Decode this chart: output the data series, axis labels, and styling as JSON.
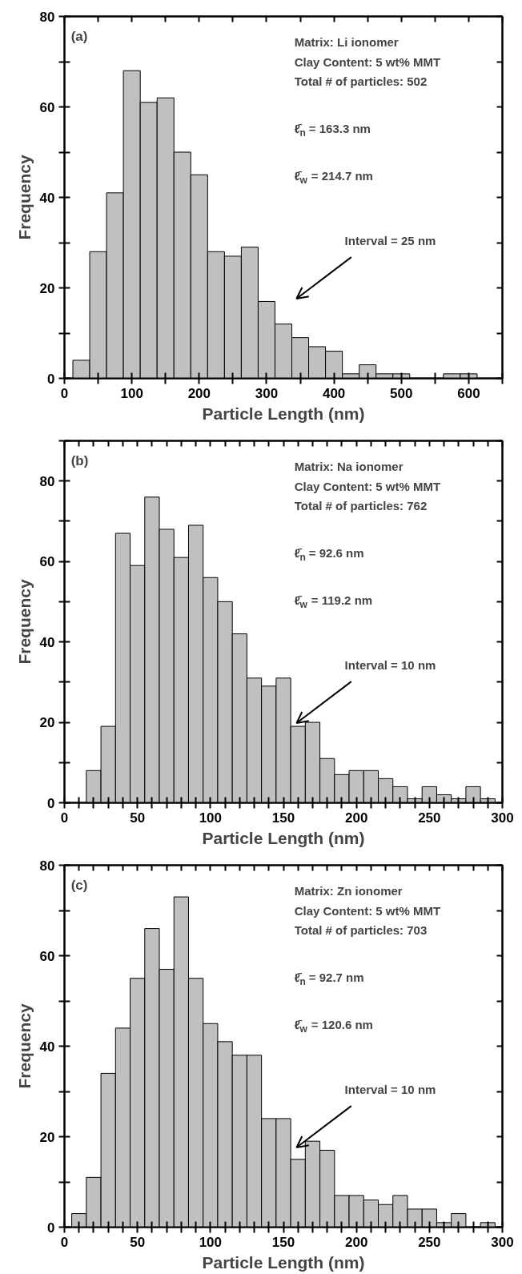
{
  "chart_data": [
    {
      "type": "histogram",
      "xlabel": "Particle Length (nm)",
      "ylabel": "Frequency",
      "color": "#c0c0c0",
      "grid": false,
      "bins": [
        12.5,
        37.5,
        62.5,
        87.5,
        112.5,
        137.5,
        162.5,
        187.5,
        212.5,
        237.5,
        262.5,
        287.5,
        312.5,
        337.5,
        362.5,
        387.5,
        412.5,
        437.5,
        462.5,
        487.5,
        512.5,
        537.5,
        562.5,
        587.5,
        612.5
      ],
      "values": [
        4,
        28,
        41,
        68,
        61,
        62,
        50,
        45,
        28,
        27,
        29,
        17,
        12,
        9,
        7,
        6,
        1,
        3,
        1,
        1,
        0,
        0,
        1,
        1
      ],
      "xlim": [
        0,
        650
      ],
      "ylim": [
        0,
        80
      ],
      "xticks": [
        0,
        {
          "value": 50,
          "label": null
        },
        100,
        {
          "value": 150,
          "label": null
        },
        200,
        {
          "value": 250,
          "label": null
        },
        300,
        {
          "value": 350,
          "label": null
        },
        400,
        {
          "value": 450,
          "label": null
        },
        500,
        {
          "value": 550,
          "label": null
        },
        600,
        {
          "value": 650,
          "label": null
        }
      ],
      "yticks": [
        0,
        {
          "value": 10,
          "label": null
        },
        20,
        {
          "value": 30,
          "label": null
        },
        40,
        {
          "value": 50,
          "label": null
        },
        60,
        {
          "value": 70,
          "label": null
        },
        80
      ],
      "annotations": [
        "(a)",
        "Matrix: Li ionomer",
        "Clay Content: 5 wt% MMT",
        "Total # of particles: 502",
        "ℓ̄$_{n}$ = 163.3 nm",
        "ℓ̄$_{w}$ = 214.7 nm",
        "Interval = 25 nm"
      ]
    },
    {
      "type": "histogram",
      "xlabel": "Particle Length (nm)",
      "ylabel": "Frequency",
      "color": "#c0c0c0",
      "grid": false,
      "bins": [
        15,
        25,
        35,
        45,
        55,
        65,
        75,
        85,
        95,
        105,
        115,
        125,
        135,
        145,
        155,
        165,
        175,
        185,
        195,
        205,
        215,
        225,
        235,
        245,
        255,
        265,
        275,
        285,
        295
      ],
      "values": [
        8,
        19,
        67,
        59,
        76,
        68,
        61,
        69,
        56,
        50,
        42,
        31,
        29,
        31,
        19,
        20,
        11,
        7,
        8,
        8,
        6,
        4,
        1,
        4,
        2,
        1,
        4,
        1
      ],
      "xlim": [
        0,
        300
      ],
      "ylim": [
        0,
        90
      ],
      "xticks": [
        0,
        {
          "value": 10,
          "label": null
        },
        {
          "value": 20,
          "label": null
        },
        {
          "value": 30,
          "label": null
        },
        {
          "value": 40,
          "label": null
        },
        50,
        {
          "value": 60,
          "label": null
        },
        {
          "value": 70,
          "label": null
        },
        {
          "value": 80,
          "label": null
        },
        {
          "value": 90,
          "label": null
        },
        100,
        {
          "value": 110,
          "label": null
        },
        {
          "value": 120,
          "label": null
        },
        {
          "value": 130,
          "label": null
        },
        {
          "value": 140,
          "label": null
        },
        150,
        {
          "value": 160,
          "label": null
        },
        {
          "value": 170,
          "label": null
        },
        {
          "value": 180,
          "label": null
        },
        {
          "value": 190,
          "label": null
        },
        200,
        {
          "value": 210,
          "label": null
        },
        {
          "value": 220,
          "label": null
        },
        {
          "value": 230,
          "label": null
        },
        {
          "value": 240,
          "label": null
        },
        250,
        {
          "value": 260,
          "label": null
        },
        {
          "value": 270,
          "label": null
        },
        {
          "value": 280,
          "label": null
        },
        {
          "value": 290,
          "label": null
        },
        300
      ],
      "yticks": [
        0,
        {
          "value": 10,
          "label": null
        },
        20,
        {
          "value": 30,
          "label": null
        },
        40,
        {
          "value": 50,
          "label": null
        },
        60,
        {
          "value": 70,
          "label": null
        },
        80,
        {
          "value": 90,
          "label": null
        }
      ],
      "annotations": [
        "(b)",
        "Matrix: Na ionomer",
        "Clay Content: 5 wt% MMT",
        "Total # of particles: 762",
        "ℓ̄$_{n}$ = 92.6 nm",
        "ℓ̄$_{w}$ = 119.2 nm",
        "Interval = 10 nm"
      ]
    },
    {
      "type": "histogram",
      "xlabel": "Particle Length (nm)",
      "ylabel": "Frequency",
      "color": "#c0c0c0",
      "grid": false,
      "bins": [
        5,
        15,
        25,
        35,
        45,
        55,
        65,
        75,
        85,
        95,
        105,
        115,
        125,
        135,
        145,
        155,
        165,
        175,
        185,
        195,
        205,
        215,
        225,
        235,
        245,
        255,
        265,
        275,
        285,
        295
      ],
      "values": [
        3,
        11,
        34,
        44,
        55,
        66,
        57,
        73,
        55,
        45,
        41,
        38,
        38,
        24,
        24,
        15,
        19,
        17,
        7,
        7,
        6,
        5,
        7,
        4,
        4,
        1,
        3,
        0,
        1
      ],
      "xlim": [
        0,
        300
      ],
      "ylim": [
        0,
        80
      ],
      "xticks": [
        0,
        {
          "value": 10,
          "label": null
        },
        {
          "value": 20,
          "label": null
        },
        {
          "value": 30,
          "label": null
        },
        {
          "value": 40,
          "label": null
        },
        50,
        {
          "value": 60,
          "label": null
        },
        {
          "value": 70,
          "label": null
        },
        {
          "value": 80,
          "label": null
        },
        {
          "value": 90,
          "label": null
        },
        100,
        {
          "value": 110,
          "label": null
        },
        {
          "value": 120,
          "label": null
        },
        {
          "value": 130,
          "label": null
        },
        {
          "value": 140,
          "label": null
        },
        150,
        {
          "value": 160,
          "label": null
        },
        {
          "value": 170,
          "label": null
        },
        {
          "value": 180,
          "label": null
        },
        {
          "value": 190,
          "label": null
        },
        200,
        {
          "value": 210,
          "label": null
        },
        {
          "value": 220,
          "label": null
        },
        {
          "value": 230,
          "label": null
        },
        {
          "value": 240,
          "label": null
        },
        250,
        {
          "value": 260,
          "label": null
        },
        {
          "value": 270,
          "label": null
        },
        {
          "value": 280,
          "label": null
        },
        {
          "value": 290,
          "label": null
        },
        300
      ],
      "yticks": [
        0,
        {
          "value": 10,
          "label": null
        },
        20,
        {
          "value": 30,
          "label": null
        },
        40,
        {
          "value": 50,
          "label": null
        },
        60,
        {
          "value": 70,
          "label": null
        },
        80
      ],
      "annotations": [
        "(c)",
        "Matrix: Zn ionomer",
        "Clay Content: 5 wt% MMT",
        "Total # of particles: 703",
        "ℓ̄$_{n}$ = 92.7 nm",
        "ℓ̄$_{w}$ = 120.6 nm",
        "Interval = 10 nm"
      ]
    }
  ]
}
